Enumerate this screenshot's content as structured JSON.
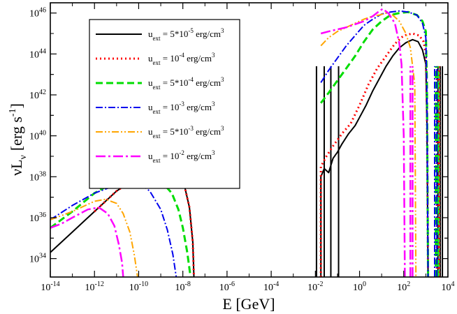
{
  "chart_data": {
    "type": "line",
    "xlabel": "E [GeV]",
    "ylabel": {
      "base": "νL",
      "sub": "ν",
      "units": "[erg s",
      "sup": "-1",
      "close": "]"
    },
    "xscale": "log",
    "yscale": "log",
    "xlim_exp": [
      -14,
      4
    ],
    "ylim_exp": [
      33.1,
      46.5
    ],
    "x_ticks": [
      {
        "base": "10",
        "exp": "-14",
        "value_exp": -14
      },
      {
        "base": "10",
        "exp": "-12",
        "value_exp": -12
      },
      {
        "base": "10",
        "exp": "-10",
        "value_exp": -10
      },
      {
        "base": "10",
        "exp": "-8",
        "value_exp": -8
      },
      {
        "base": "10",
        "exp": "-6",
        "value_exp": -6
      },
      {
        "base": "10",
        "exp": "-4",
        "value_exp": -4
      },
      {
        "base": "10",
        "exp": "-2",
        "value_exp": -2
      },
      {
        "base": "10",
        "exp": "0",
        "value_exp": 0
      },
      {
        "base": "10",
        "exp": "2",
        "value_exp": 2
      },
      {
        "base": "10",
        "exp": "4",
        "value_exp": 4
      }
    ],
    "y_ticks": [
      {
        "base": "10",
        "exp": "34",
        "value_exp": 34
      },
      {
        "base": "10",
        "exp": "36",
        "value_exp": 36
      },
      {
        "base": "10",
        "exp": "38",
        "value_exp": 38
      },
      {
        "base": "10",
        "exp": "40",
        "value_exp": 40
      },
      {
        "base": "10",
        "exp": "42",
        "value_exp": 42
      },
      {
        "base": "10",
        "exp": "44",
        "value_exp": 44
      },
      {
        "base": "10",
        "exp": "46",
        "value_exp": 46
      }
    ],
    "legend_position": "top-left",
    "series": [
      {
        "name": "u_ext = 5*10^-5 erg/cm^3",
        "legend": {
          "u": "u",
          "sub": "ext",
          "pre": " = 5*10",
          "exp": "-5",
          "unit": " erg/cm",
          "unit_exp": "3"
        },
        "color": "#000000",
        "dash": "",
        "width": 2,
        "low": [
          [
            -14,
            34.3
          ],
          [
            -13,
            35.3
          ],
          [
            -12,
            36.3
          ],
          [
            -11,
            37.3
          ],
          [
            -10,
            38.0
          ],
          [
            -9.5,
            38.3
          ],
          [
            -9,
            38.5
          ],
          [
            -8.6,
            38.6
          ],
          [
            -8.3,
            38.45
          ],
          [
            -8,
            37.9
          ],
          [
            -7.7,
            36.5
          ],
          [
            -7.55,
            34.8
          ],
          [
            -7.5,
            33.1
          ]
        ],
        "high": [
          [
            -1.75,
            33.1
          ],
          [
            -1.75,
            38.0
          ],
          [
            -1.6,
            38.4
          ],
          [
            -1.4,
            38.2
          ],
          [
            -1.2,
            38.9
          ],
          [
            -1.0,
            39.2
          ],
          [
            -0.8,
            39.6
          ],
          [
            -0.5,
            40.1
          ],
          [
            -0.2,
            40.5
          ],
          [
            0,
            40.9
          ],
          [
            0.3,
            41.5
          ],
          [
            0.6,
            42.2
          ],
          [
            0.9,
            42.8
          ],
          [
            1.2,
            43.4
          ],
          [
            1.5,
            43.9
          ],
          [
            1.8,
            44.3
          ],
          [
            2.1,
            44.55
          ],
          [
            2.4,
            44.7
          ],
          [
            2.65,
            44.6
          ],
          [
            2.85,
            44.2
          ],
          [
            3.0,
            43.5
          ],
          [
            3.05,
            40.5
          ],
          [
            3.1,
            33.1
          ]
        ],
        "spikes": [
          -1.95,
          -1.6,
          -1.3,
          -0.95,
          3.55,
          3.65,
          3.75
        ]
      },
      {
        "name": "u_ext = 10^-4 erg/cm^3",
        "legend": {
          "u": "u",
          "sub": "ext",
          "pre": " = 10",
          "exp": "-4",
          "unit": " erg/cm",
          "unit_exp": "3"
        },
        "color": "#ff0000",
        "dash": "2,4",
        "width": 3,
        "low": [
          [
            -12,
            36.3
          ],
          [
            -11,
            37.3
          ],
          [
            -10,
            38.0
          ],
          [
            -9.5,
            38.3
          ],
          [
            -9,
            38.5
          ],
          [
            -8.6,
            38.6
          ],
          [
            -8.3,
            38.45
          ],
          [
            -8,
            37.9
          ],
          [
            -7.7,
            36.5
          ],
          [
            -7.55,
            34.8
          ],
          [
            -7.5,
            33.1
          ]
        ],
        "high": [
          [
            -1.75,
            33.1
          ],
          [
            -1.75,
            38.5
          ],
          [
            -1.5,
            39.0
          ],
          [
            -1.2,
            39.5
          ],
          [
            -0.8,
            40.1
          ],
          [
            -0.4,
            40.6
          ],
          [
            0,
            41.5
          ],
          [
            0.4,
            42.5
          ],
          [
            0.8,
            43.3
          ],
          [
            1.2,
            43.9
          ],
          [
            1.6,
            44.5
          ],
          [
            2.0,
            44.9
          ],
          [
            2.4,
            45.0
          ],
          [
            2.7,
            44.9
          ],
          [
            2.9,
            44.6
          ],
          [
            3.0,
            44.0
          ],
          [
            3.05,
            41.0
          ],
          [
            3.1,
            33.1
          ]
        ],
        "spikes": [
          3.5,
          3.6
        ]
      },
      {
        "name": "u_ext = 5*10^-4 erg/cm^3",
        "legend": {
          "u": "u",
          "sub": "ext",
          "pre": " = 5*10",
          "exp": "-4",
          "unit": " erg/cm",
          "unit_exp": "3"
        },
        "color": "#00dd00",
        "dash": "10,5",
        "width": 3,
        "low": [
          [
            -14,
            35.5
          ],
          [
            -13,
            36.3
          ],
          [
            -12,
            37.2
          ],
          [
            -11,
            37.8
          ],
          [
            -10,
            38.1
          ],
          [
            -9.5,
            38.1
          ],
          [
            -9,
            37.8
          ],
          [
            -8.5,
            37.2
          ],
          [
            -8.2,
            36.4
          ],
          [
            -8,
            35.5
          ],
          [
            -7.8,
            34.3
          ],
          [
            -7.65,
            33.1
          ]
        ],
        "high": [
          [
            -1.75,
            41.6
          ],
          [
            -1.4,
            42.1
          ],
          [
            -1.0,
            42.7
          ],
          [
            -0.6,
            43.3
          ],
          [
            -0.2,
            43.9
          ],
          [
            0.2,
            44.6
          ],
          [
            0.6,
            45.2
          ],
          [
            1.0,
            45.6
          ],
          [
            1.4,
            45.9
          ],
          [
            1.8,
            46.0
          ],
          [
            2.2,
            46.05
          ],
          [
            2.6,
            45.9
          ],
          [
            2.85,
            45.6
          ],
          [
            3.0,
            45.1
          ],
          [
            3.05,
            42.5
          ],
          [
            3.1,
            33.1
          ]
        ],
        "spikes": [
          3.45,
          3.55
        ]
      },
      {
        "name": "u_ext = 10^-3 erg/cm^3",
        "legend": {
          "u": "u",
          "sub": "ext",
          "pre": " = 10",
          "exp": "-3",
          "unit": " erg/cm",
          "unit_exp": "3"
        },
        "color": "#0000ee",
        "dash": "10,3,2,3",
        "width": 2,
        "low": [
          [
            -14,
            35.9
          ],
          [
            -13,
            36.6
          ],
          [
            -12,
            37.2
          ],
          [
            -11,
            37.6
          ],
          [
            -10.5,
            37.8
          ],
          [
            -10,
            37.7
          ],
          [
            -9.5,
            37.3
          ],
          [
            -9,
            36.4
          ],
          [
            -8.7,
            35.4
          ],
          [
            -8.45,
            34.2
          ],
          [
            -8.3,
            33.1
          ]
        ],
        "high": [
          [
            -1.75,
            42.6
          ],
          [
            -1.4,
            43.2
          ],
          [
            -1.0,
            43.8
          ],
          [
            -0.6,
            44.4
          ],
          [
            -0.2,
            44.9
          ],
          [
            0.2,
            45.4
          ],
          [
            0.6,
            45.7
          ],
          [
            1.0,
            45.95
          ],
          [
            1.4,
            46.05
          ],
          [
            1.8,
            46.1
          ],
          [
            2.2,
            46.05
          ],
          [
            2.6,
            45.9
          ],
          [
            2.85,
            45.5
          ],
          [
            3.0,
            44.8
          ],
          [
            3.05,
            42.0
          ],
          [
            3.1,
            33.1
          ]
        ],
        "spikes": [
          3.4,
          3.5
        ]
      },
      {
        "name": "u_ext = 5*10^-3 erg/cm^3",
        "legend": {
          "u": "u",
          "sub": "ext",
          "pre": " = 5*10",
          "exp": "-3",
          "unit": " erg/cm",
          "unit_exp": "3"
        },
        "color": "#ffa500",
        "dash": "10,3,2,3,2,3",
        "width": 2,
        "low": [
          [
            -14,
            35.9
          ],
          [
            -13,
            36.3
          ],
          [
            -12,
            36.8
          ],
          [
            -11.5,
            36.9
          ],
          [
            -11,
            36.7
          ],
          [
            -10.7,
            36.2
          ],
          [
            -10.4,
            35.3
          ],
          [
            -10.2,
            34.2
          ],
          [
            -10.05,
            33.1
          ]
        ],
        "high": [
          [
            -1.75,
            44.4
          ],
          [
            -1.4,
            44.8
          ],
          [
            -1.0,
            45.1
          ],
          [
            -0.6,
            45.3
          ],
          [
            -0.2,
            45.5
          ],
          [
            0.2,
            45.7
          ],
          [
            0.6,
            45.85
          ],
          [
            0.9,
            45.9
          ],
          [
            1.2,
            46.0
          ],
          [
            1.5,
            45.9
          ],
          [
            1.8,
            45.6
          ],
          [
            2.1,
            45.0
          ],
          [
            2.3,
            44.3
          ],
          [
            2.5,
            42.5
          ],
          [
            2.55,
            33.1
          ]
        ],
        "spikes": []
      },
      {
        "name": "u_ext = 10^-2 erg/cm^3",
        "legend": {
          "u": "u",
          "sub": "ext",
          "pre": " = 10",
          "exp": "-2",
          "unit": " erg/cm",
          "unit_exp": "3"
        },
        "color": "#ff00ff",
        "dash": "14,4,3,4",
        "width": 2.5,
        "low": [
          [
            -14,
            35.5
          ],
          [
            -13.5,
            35.7
          ],
          [
            -13,
            36.0
          ],
          [
            -12.3,
            36.4
          ],
          [
            -11.8,
            36.5
          ],
          [
            -11.4,
            36.2
          ],
          [
            -11.1,
            35.6
          ],
          [
            -10.9,
            34.7
          ],
          [
            -10.75,
            33.8
          ],
          [
            -10.7,
            33.1
          ]
        ],
        "high": [
          [
            -1.75,
            45.0
          ],
          [
            -1.4,
            45.1
          ],
          [
            -1.0,
            45.2
          ],
          [
            -0.6,
            45.3
          ],
          [
            -0.2,
            45.45
          ],
          [
            0.2,
            45.6
          ],
          [
            0.6,
            45.85
          ],
          [
            0.9,
            46.1
          ],
          [
            1.05,
            46.2
          ],
          [
            1.3,
            46.0
          ],
          [
            1.6,
            45.5
          ],
          [
            1.8,
            44.5
          ],
          [
            1.9,
            43.5
          ],
          [
            2.0,
            40.0
          ],
          [
            2.05,
            33.1
          ]
        ],
        "spikes": [
          2.3,
          2.4
        ]
      }
    ]
  }
}
